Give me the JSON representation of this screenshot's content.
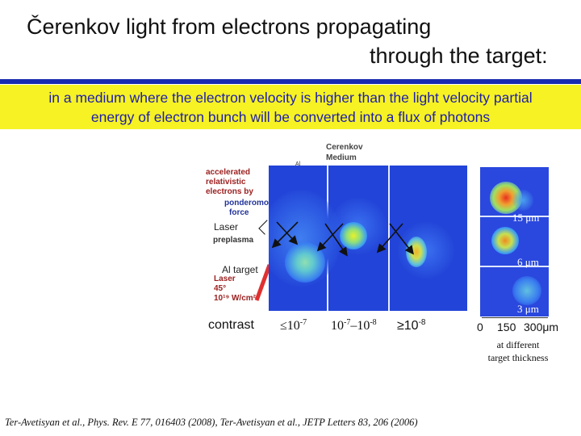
{
  "title": {
    "line1": "Čerenkov light from electrons propagating",
    "line2": "through the target:"
  },
  "subtitle": {
    "line1": "in a medium where the electron velocity is higher than the light velocity partial",
    "line2": "energy of electron bunch will be converted into a flux of photons"
  },
  "figure": {
    "header_label1": "Cerenkov",
    "header_label2": "Medium",
    "al_mark": "Al",
    "side_labels": [
      "accelerated",
      "relativistic",
      "electrons by",
      "ponderomotive",
      "force",
      "preplasma",
      "Laser",
      "45°",
      "10¹⁹ W/cm²"
    ],
    "laser_label": "Laser",
    "al_target_label": "Al target",
    "contrast_label": "contrast",
    "contrast_values": [
      {
        "prefix": "≤10",
        "exp": "-7"
      },
      {
        "prefix": "10",
        "exp": "-7",
        "mid": "–10",
        "exp2": "-8"
      },
      {
        "prefix": "≥10",
        "exp": "-8"
      }
    ],
    "thickness_labels": [
      "15 μm",
      "6 μm",
      "3 μm"
    ],
    "scale_ticks": [
      "0",
      "150",
      "300μm"
    ],
    "caption_line1": "at different",
    "caption_line2": "target thickness"
  },
  "footer": {
    "reference": "Ter-Avetisyan et al., Phys. Rev. E 77, 016403 (2008), Ter-Avetisyan et al., JETP Letters 83, 206 (2006)"
  },
  "colors": {
    "accent_blue": "#1a2bb0",
    "highlight_yellow": "#f6f224",
    "subtitle_text": "#1e1eaa",
    "image_blue": "#2244d8"
  }
}
